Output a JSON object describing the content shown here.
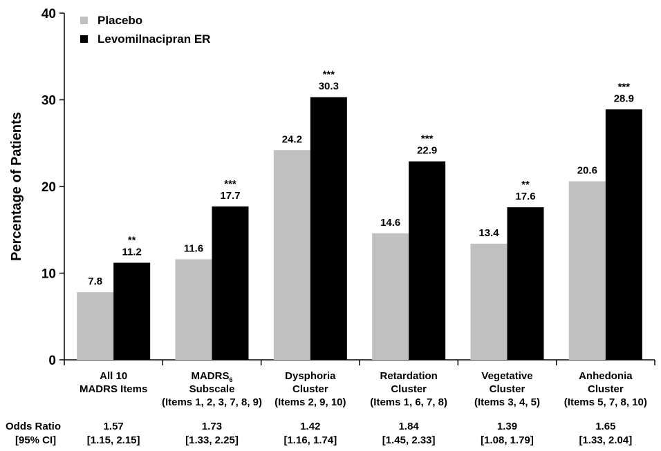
{
  "chart_data": {
    "type": "bar",
    "ylabel": "Percentage of Patients",
    "ylim": [
      0,
      40
    ],
    "yticks": [
      "0",
      "10",
      "20",
      "30",
      "40"
    ],
    "grid": false,
    "legend_position": "top-left",
    "colors": {
      "Placebo": "#c0c0c0",
      "Levomilnacipran ER": "#000000"
    },
    "categories": [
      {
        "lines": [
          "All 10",
          "MADRS Items"
        ]
      },
      {
        "lines": [
          "MADRS",
          "Subscale",
          "(Items 1, 2, 3, 7, 8, 9)"
        ],
        "subscript": "6"
      },
      {
        "lines": [
          "Dysphoria",
          "Cluster",
          "(Items 2, 9, 10)"
        ]
      },
      {
        "lines": [
          "Retardation",
          "Cluster",
          "(Items 1, 6, 7, 8)"
        ]
      },
      {
        "lines": [
          "Vegetative",
          "Cluster",
          "(Items 3, 4, 5)"
        ]
      },
      {
        "lines": [
          "Anhedonia",
          "Cluster",
          "(Items 5, 7, 8, 10)"
        ]
      }
    ],
    "series": [
      {
        "name": "Placebo",
        "values": [
          7.8,
          11.6,
          24.2,
          14.6,
          13.4,
          20.6
        ],
        "labels": [
          "7.8",
          "11.6",
          "24.2",
          "14.6",
          "13.4",
          "20.6"
        ]
      },
      {
        "name": "Levomilnacipran ER",
        "values": [
          11.2,
          17.7,
          30.3,
          22.9,
          17.6,
          28.9
        ],
        "labels": [
          "11.2",
          "17.7",
          "30.3",
          "22.9",
          "17.6",
          "28.9"
        ],
        "significance": [
          "**",
          "***",
          "***",
          "***",
          "**",
          "***"
        ]
      }
    ],
    "odds_table": {
      "row_labels": [
        "Odds Ratio",
        "[95% CI]"
      ],
      "odds_ratio": [
        "1.57",
        "1.73",
        "1.42",
        "1.84",
        "1.39",
        "1.65"
      ],
      "ci": [
        "[1.15, 2.15]",
        "[1.33, 2.25]",
        "[1.16, 1.74]",
        "[1.45, 2.33]",
        "[1.08, 1.79]",
        "[1.33, 2.04]"
      ]
    }
  }
}
